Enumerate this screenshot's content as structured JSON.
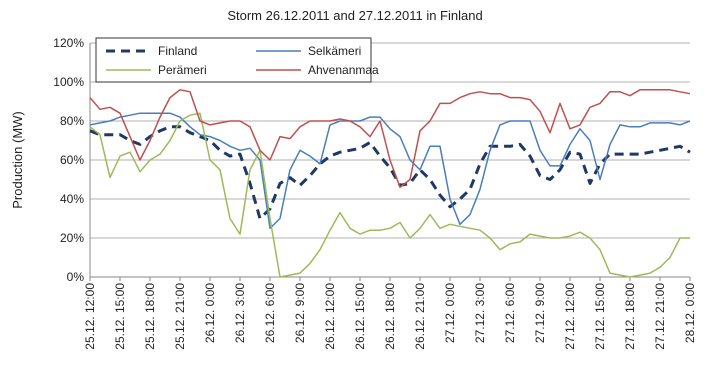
{
  "chart_data": {
    "type": "line",
    "title": "Storm 26.12.2011 and 27.12.2011 in Finland",
    "y_label": "Production (MW)",
    "categories": [
      "25.12. 12:00",
      null,
      null,
      "25.12. 15:00",
      null,
      null,
      "25.12. 18:00",
      null,
      null,
      "25.12. 21:00",
      null,
      null,
      "26.12. 0:00",
      null,
      null,
      "26.12. 3:00",
      null,
      null,
      "26.12. 6:00",
      null,
      null,
      "26.12. 9:00",
      null,
      null,
      "26.12. 12:00",
      null,
      null,
      "26.12. 15:00",
      null,
      null,
      "26.12. 18:00",
      null,
      null,
      "26.12. 21:00",
      null,
      null,
      "27.12. 0:00",
      null,
      null,
      "27.12. 3:00",
      null,
      null,
      "27.12. 6:00",
      null,
      null,
      "27.12. 9:00",
      null,
      null,
      "27.12. 12:00",
      null,
      null,
      "27.12. 15:00",
      null,
      null,
      "27.12. 18:00",
      null,
      null,
      "27.12. 21:00",
      null,
      null,
      "28.12. 0:00"
    ],
    "series": [
      {
        "name": "Finland",
        "color": "#1f3864",
        "dashed": true,
        "values": [
          75,
          73,
          73,
          73,
          70,
          68,
          72,
          75,
          77,
          77,
          74,
          72,
          70,
          65,
          62,
          63,
          48,
          30,
          35,
          48,
          51,
          47,
          52,
          58,
          62,
          64,
          65,
          66,
          69,
          62,
          56,
          47,
          48,
          55,
          50,
          42,
          36,
          40,
          45,
          58,
          67,
          67,
          67,
          68,
          62,
          52,
          50,
          55,
          64,
          63,
          48,
          58,
          63,
          63,
          63,
          63,
          64,
          65,
          66,
          67,
          64
        ]
      },
      {
        "name": "Selkämeri",
        "color": "#4a7ebb",
        "dashed": false,
        "values": [
          78,
          79,
          80,
          82,
          83,
          84,
          84,
          84,
          84,
          82,
          77,
          73,
          72,
          70,
          67,
          65,
          66,
          60,
          25,
          30,
          55,
          65,
          62,
          58,
          78,
          80,
          80,
          80,
          82,
          82,
          76,
          72,
          60,
          55,
          67,
          67,
          40,
          27,
          32,
          45,
          65,
          78,
          80,
          80,
          80,
          65,
          57,
          57,
          68,
          76,
          70,
          50,
          68,
          78,
          77,
          77,
          79,
          79,
          79,
          78,
          80
        ]
      },
      {
        "name": "Perämeri",
        "color": "#9bbb59",
        "dashed": false,
        "values": [
          77,
          73,
          51,
          62,
          64,
          54,
          60,
          63,
          70,
          80,
          83,
          84,
          60,
          55,
          30,
          22,
          55,
          65,
          30,
          0,
          1,
          2,
          7,
          14,
          24,
          33,
          25,
          22,
          24,
          24,
          25,
          28,
          20,
          25,
          32,
          25,
          27,
          26,
          25,
          24,
          20,
          14,
          17,
          18,
          22,
          21,
          20,
          20,
          21,
          23,
          20,
          14,
          2,
          1,
          0,
          1,
          2,
          5,
          10,
          20,
          20
        ]
      },
      {
        "name": "Ahvenanmaa",
        "color": "#c0504d",
        "dashed": false,
        "values": [
          92,
          86,
          87,
          84,
          72,
          60,
          70,
          82,
          92,
          96,
          95,
          80,
          78,
          79,
          80,
          80,
          77,
          65,
          60,
          72,
          71,
          77,
          80,
          80,
          80,
          81,
          80,
          77,
          72,
          80,
          60,
          46,
          50,
          75,
          80,
          89,
          89,
          92,
          94,
          95,
          94,
          94,
          92,
          92,
          91,
          85,
          74,
          89,
          76,
          78,
          87,
          89,
          95,
          95,
          93,
          96,
          96,
          96,
          96,
          95,
          94
        ]
      }
    ],
    "ylim": [
      0,
      120
    ],
    "yticks": [
      {
        "value": 0,
        "label": "0%"
      },
      {
        "value": 20,
        "label": "20%"
      },
      {
        "value": 40,
        "label": "40%"
      },
      {
        "value": 60,
        "label": "60%"
      },
      {
        "value": 80,
        "label": "80%"
      },
      {
        "value": 100,
        "label": "100%"
      },
      {
        "value": 120,
        "label": "120%"
      }
    ],
    "grid": true,
    "legend": "top-left"
  }
}
